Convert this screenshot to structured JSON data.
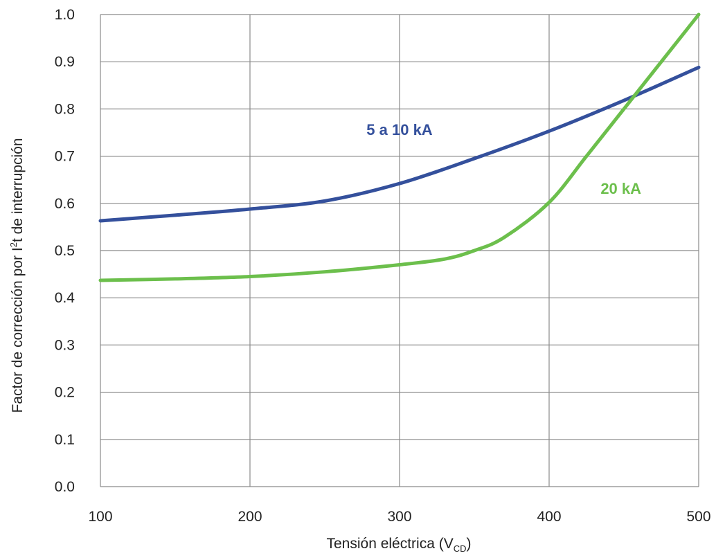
{
  "chart_data": {
    "type": "line",
    "title": "",
    "xlabel": {
      "main": "Tensión eléctrica (V",
      "sub": "CD",
      "close": ")"
    },
    "ylabel": {
      "pre": "Factor de corrección por I",
      "sup": "2",
      "post": "t de interrupción"
    },
    "xlim": [
      100,
      500
    ],
    "ylim": [
      0.0,
      1.0
    ],
    "x_ticks": [
      100,
      200,
      300,
      400,
      500
    ],
    "y_ticks": [
      "0.0",
      "0.1",
      "0.2",
      "0.3",
      "0.4",
      "0.5",
      "0.6",
      "0.7",
      "0.8",
      "0.9",
      "1.0"
    ],
    "grid": true,
    "series": [
      {
        "name": "5 a 10 kA",
        "color": "#34509c",
        "x": [
          100,
          150,
          200,
          250,
          300,
          350,
          400,
          450,
          500
        ],
        "y": [
          0.563,
          0.575,
          0.588,
          0.605,
          0.642,
          0.695,
          0.753,
          0.818,
          0.888
        ]
      },
      {
        "name": "20 kA",
        "color": "#6cbf4c",
        "x": [
          100,
          150,
          200,
          250,
          300,
          330,
          350,
          370,
          400,
          425,
          450,
          475,
          500
        ],
        "y": [
          0.437,
          0.44,
          0.445,
          0.455,
          0.47,
          0.482,
          0.5,
          0.528,
          0.602,
          0.7,
          0.8,
          0.9,
          1.0
        ]
      }
    ],
    "labels": [
      {
        "text": "5 a 10 kA",
        "x": 300,
        "y": 0.745,
        "color": "#34509c"
      },
      {
        "text": "20 kA",
        "x": 448,
        "y": 0.62,
        "color": "#6cbf4c"
      }
    ]
  }
}
